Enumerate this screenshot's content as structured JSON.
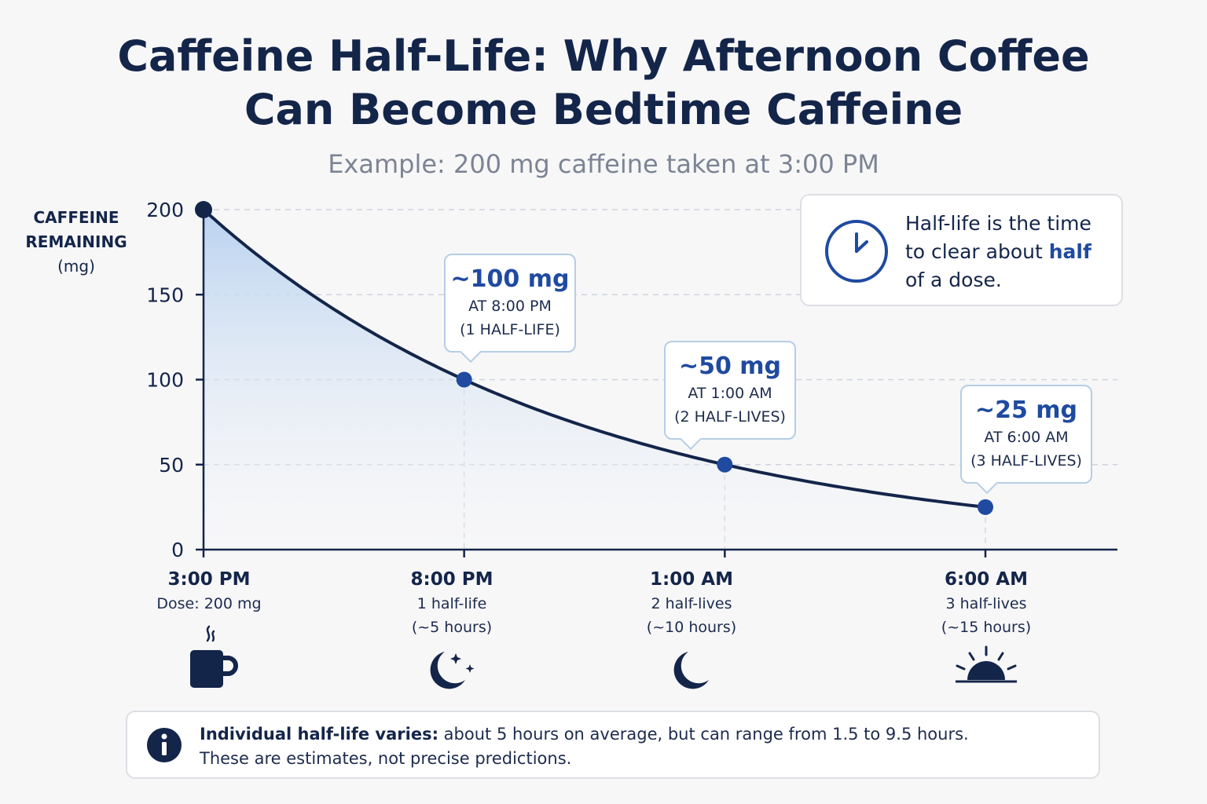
{
  "title_line1": "Caffeine Half-Life: Why Afternoon Coffee",
  "title_line2": "Can Become Bedtime Caffeine",
  "subtitle": "Example: 200 mg caffeine taken at 3:00 PM",
  "y_axis_label": {
    "line1": "CAFFEINE",
    "line2": "REMAINING",
    "line3": "(mg)"
  },
  "info_box": {
    "text_before": "Half-life is the time to clear about ",
    "text_bold": "half",
    "text_after": " of a dose.",
    "icon": "clock-icon"
  },
  "chart_data": {
    "type": "area",
    "x_labels": [
      "3:00 PM",
      "8:00 PM",
      "1:00 AM",
      "6:00 AM"
    ],
    "x_hours": [
      0,
      5,
      10,
      15
    ],
    "curve": {
      "initial_mg": 200,
      "half_life_hours": 5
    },
    "points": [
      {
        "hours": 0,
        "mg": 200
      },
      {
        "hours": 5,
        "mg": 100
      },
      {
        "hours": 10,
        "mg": 50
      },
      {
        "hours": 15,
        "mg": 25
      }
    ],
    "yticks": [
      0,
      50,
      100,
      150,
      200
    ],
    "ylim": [
      0,
      200
    ],
    "grid": "horizontal dashed, vertical dashed at half-life points",
    "colors": {
      "line": "#14254a",
      "point": "#1f4aa0",
      "fill_top": "#b9d2f0",
      "fill_bottom": "#f7f7f8"
    }
  },
  "callouts": [
    {
      "value": "~100 mg",
      "time": "AT 8:00 PM",
      "halflives": "(1 HALF-LIFE)"
    },
    {
      "value": "~50 mg",
      "time": "AT 1:00 AM",
      "halflives": "(2 HALF-LIVES)"
    },
    {
      "value": "~25 mg",
      "time": "AT 6:00 AM",
      "halflives": "(3 HALF-LIVES)"
    }
  ],
  "x_details": [
    {
      "time": "3:00 PM",
      "sub1": "Dose: 200 mg",
      "sub2": "",
      "icon": "coffee-mug-icon"
    },
    {
      "time": "8:00 PM",
      "sub1": "1 half-life",
      "sub2": "(~5 hours)",
      "icon": "moon-stars-icon"
    },
    {
      "time": "1:00 AM",
      "sub1": "2 half-lives",
      "sub2": "(~10 hours)",
      "icon": "moon-icon"
    },
    {
      "time": "6:00 AM",
      "sub1": "3 half-lives",
      "sub2": "(~15 hours)",
      "icon": "sunrise-icon"
    }
  ],
  "note": {
    "bold": "Individual half-life varies:",
    "line1_rest": " about 5 hours on average, but can range from 1.5 to 9.5 hours.",
    "line2": "These are estimates, not precise predictions.",
    "icon": "info-icon"
  }
}
